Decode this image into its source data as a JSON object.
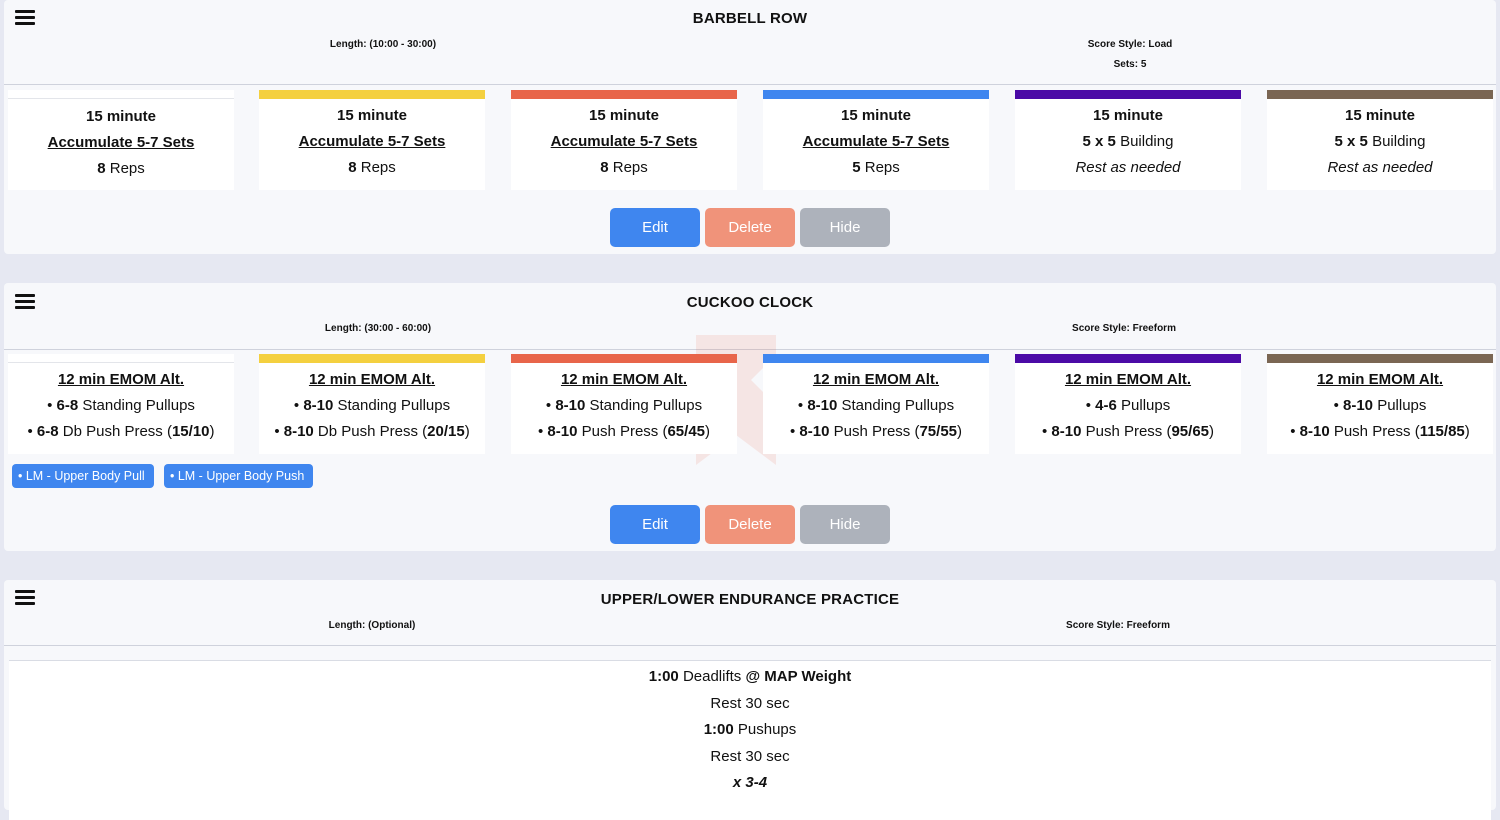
{
  "workouts": [
    {
      "title": "BARBELL ROW",
      "length": "Length: (10:00 - 30:00)",
      "score_style": "Score Style: Load",
      "sets": "Sets: 5",
      "cards": [
        {
          "color": "#ffffff",
          "l1": "15 minute",
          "l2": "Accumulate 5-7 Sets",
          "l3_num": "8",
          "l3_txt": " Reps"
        },
        {
          "color": "#f4d03f",
          "l1": "15 minute",
          "l2": "Accumulate 5-7 Sets",
          "l3_num": "8",
          "l3_txt": " Reps"
        },
        {
          "color": "#e8654a",
          "l1": "15 minute",
          "l2": "Accumulate 5-7 Sets",
          "l3_num": "8",
          "l3_txt": " Reps"
        },
        {
          "color": "#3f86ef",
          "l1": "15 minute",
          "l2": "Accumulate 5-7 Sets",
          "l3_num": "5",
          "l3_txt": " Reps"
        },
        {
          "color": "#4b0aa6",
          "l1": "15 minute",
          "l2_num": "5 x 5",
          "l2_txt": " Building",
          "l3": "Rest as needed"
        },
        {
          "color": "#7a6653",
          "l1": "15 minute",
          "l2_num": "5 x 5",
          "l2_txt": " Building",
          "l3": "Rest as needed"
        }
      ],
      "buttons": {
        "edit": "Edit",
        "delete": "Delete",
        "hide": "Hide"
      }
    },
    {
      "title": "CUCKOO CLOCK",
      "length": "Length: (30:00 - 60:00)",
      "score_style": "Score Style: Freeform",
      "cards": [
        {
          "color": "#ffffff",
          "l1": "12 min EMOM Alt.",
          "a_num": "6-8",
          "a_txt": " Standing Pullups",
          "b_num": "6-8",
          "b_txt": " Db Push Press (",
          "b_w": "15/10",
          "b_end": ")"
        },
        {
          "color": "#f4d03f",
          "l1": "12 min EMOM Alt.",
          "a_num": "8-10",
          "a_txt": " Standing Pullups",
          "b_num": "8-10",
          "b_txt": " Db Push Press (",
          "b_w": "20/15",
          "b_end": ")"
        },
        {
          "color": "#e8654a",
          "l1": "12 min EMOM Alt.",
          "a_num": "8-10",
          "a_txt": " Standing Pullups",
          "b_num": "8-10",
          "b_txt": " Push Press (",
          "b_w": "65/45",
          "b_end": ")"
        },
        {
          "color": "#3f86ef",
          "l1": "12 min EMOM Alt.",
          "a_num": "8-10",
          "a_txt": " Standing Pullups",
          "b_num": "8-10",
          "b_txt": " Push Press (",
          "b_w": "75/55",
          "b_end": ")"
        },
        {
          "color": "#4b0aa6",
          "l1": "12 min EMOM Alt.",
          "a_num": "4-6",
          "a_txt": " Pullups",
          "b_num": "8-10",
          "b_txt": " Push Press (",
          "b_w": "95/65",
          "b_end": ")"
        },
        {
          "color": "#7a6653",
          "l1": "12 min EMOM Alt.",
          "a_num": "8-10",
          "a_txt": " Pullups",
          "b_num": "8-10",
          "b_txt": " Push Press (",
          "b_w": "115/85",
          "b_end": ")"
        }
      ],
      "tags": [
        "• LM - Upper Body Pull",
        "• LM - Upper Body Push"
      ],
      "buttons": {
        "edit": "Edit",
        "delete": "Delete",
        "hide": "Hide"
      }
    },
    {
      "title": "UPPER/LOWER ENDURANCE PRACTICE",
      "length": "Length: (Optional)",
      "score_style": "Score Style: Freeform",
      "lines": {
        "l1_time": "1:00",
        "l1_txt": " Deadlifts  ",
        "l1_bold": "@ MAP Weight",
        "l2": "Rest 30 sec",
        "l3_time": "1:00",
        "l3_txt": " Pushups",
        "l4": "Rest 30 sec",
        "l5": "x 3-4"
      }
    }
  ],
  "icons": {
    "menu": "hamburger-menu-icon",
    "bullet": "•"
  }
}
